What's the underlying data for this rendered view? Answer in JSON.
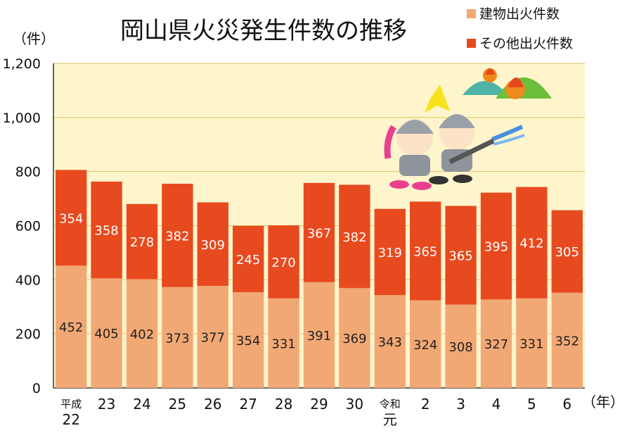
{
  "colors": {
    "building": "#F2A874",
    "other": "#E84A1F",
    "plot_bg": "#FFF5CC",
    "grid": "#D8C36A",
    "axis": "#333333"
  },
  "chart_data": {
    "type": "bar",
    "stacked": true,
    "title": "岡山県火災発生件数の推移",
    "ylabel": "（件）",
    "xlabel": "（年）",
    "ylim": [
      0,
      1200
    ],
    "yticks": [
      0,
      200,
      400,
      600,
      800,
      1000,
      1200
    ],
    "ytick_labels": [
      "0",
      "200",
      "400",
      "600",
      "800",
      "1,000",
      "1,200"
    ],
    "grid": true,
    "legend_position": "top-right",
    "categories": [
      [
        "平成",
        "22"
      ],
      [
        "23"
      ],
      [
        "24"
      ],
      [
        "25"
      ],
      [
        "26"
      ],
      [
        "27"
      ],
      [
        "28"
      ],
      [
        "29"
      ],
      [
        "30"
      ],
      [
        "令和",
        "元"
      ],
      [
        "2"
      ],
      [
        "3"
      ],
      [
        "4"
      ],
      [
        "5"
      ],
      [
        "6"
      ]
    ],
    "series": [
      {
        "name": "建物出火件数",
        "values": [
          452,
          405,
          402,
          373,
          377,
          354,
          331,
          391,
          369,
          343,
          324,
          308,
          327,
          331,
          352
        ]
      },
      {
        "name": "その他出火件数",
        "values": [
          354,
          358,
          278,
          382,
          309,
          245,
          270,
          367,
          382,
          319,
          365,
          365,
          395,
          412,
          305
        ]
      }
    ]
  }
}
